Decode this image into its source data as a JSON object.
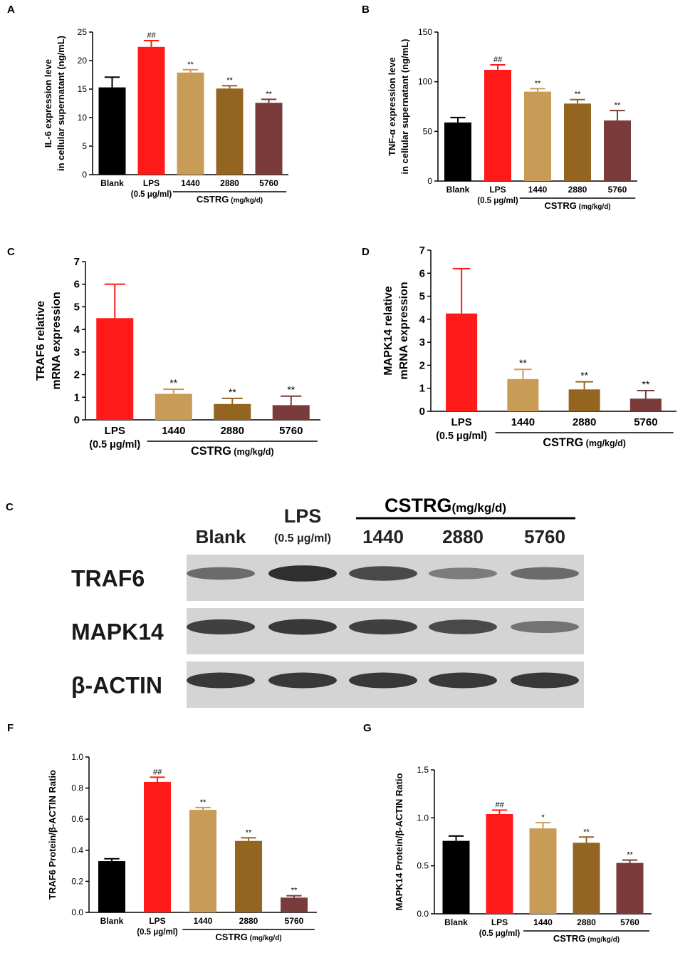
{
  "colors": {
    "Blank": "#000000",
    "LPS": "#ff1a1a",
    "1440": "#c89b57",
    "2880": "#946520",
    "5760": "#7a3b3b"
  },
  "chart_data": [
    {
      "type": "bar",
      "panel": "A",
      "ylabel": [
        "IL-6 expression leve",
        "in cellular supernatant (ng/mL)"
      ],
      "ylim": [
        0,
        25
      ],
      "yticks": [
        "0",
        "5",
        "10",
        "15",
        "20",
        "25"
      ],
      "categories": [
        "Blank",
        "LPS",
        "1440",
        "2880",
        "5760"
      ],
      "category_sublabels": [
        "",
        "(0.5 μg/ml)",
        "",
        "",
        ""
      ],
      "group_label": "CSTRG",
      "group_unit": "(mg/kg/d)",
      "values": [
        15.3,
        22.4,
        17.9,
        15.1,
        12.6
      ],
      "errors": [
        1.8,
        1.1,
        0.5,
        0.5,
        0.6
      ],
      "annotations": [
        "",
        "##",
        "**",
        "**",
        "**"
      ]
    },
    {
      "type": "bar",
      "panel": "B",
      "ylabel": [
        "TNF-α expression leve",
        "in cellular supernatant (ng/mL)"
      ],
      "ylim": [
        0,
        150
      ],
      "yticks": [
        "0",
        "50",
        "100",
        "150"
      ],
      "categories": [
        "Blank",
        "LPS",
        "1440",
        "2880",
        "5760"
      ],
      "category_sublabels": [
        "",
        "(0.5 μg/ml)",
        "",
        "",
        ""
      ],
      "group_label": "CSTRG",
      "group_unit": "(mg/kg/d)",
      "values": [
        59,
        112,
        90,
        78,
        61
      ],
      "errors": [
        5,
        5,
        3,
        4,
        10
      ],
      "annotations": [
        "",
        "##",
        "**",
        "**",
        "**"
      ]
    },
    {
      "type": "bar",
      "panel": "C",
      "ylabel": [
        "TRAF6 relative",
        "mRNA expression"
      ],
      "ylim": [
        0,
        7
      ],
      "yticks": [
        "0",
        "1",
        "2",
        "3",
        "4",
        "5",
        "6",
        "7"
      ],
      "categories": [
        "LPS",
        "1440",
        "2880",
        "5760"
      ],
      "category_sublabels": [
        "(0.5 μg/ml)",
        "",
        "",
        ""
      ],
      "group_label": "CSTRG",
      "group_unit": "(mg/kg/d)",
      "values": [
        4.5,
        1.15,
        0.7,
        0.65
      ],
      "errors": [
        1.5,
        0.2,
        0.25,
        0.4
      ],
      "annotations": [
        "",
        "**",
        "**",
        "**"
      ]
    },
    {
      "type": "bar",
      "panel": "D",
      "ylabel": [
        "MAPK14 relative",
        "mRNA expression"
      ],
      "ylim": [
        0,
        7
      ],
      "yticks": [
        "0",
        "1",
        "2",
        "3",
        "4",
        "5",
        "6",
        "7"
      ],
      "categories": [
        "LPS",
        "1440",
        "2880",
        "5760"
      ],
      "category_sublabels": [
        "(0.5 μg/ml)",
        "",
        "",
        ""
      ],
      "group_label": "CSTRG",
      "group_unit": "(mg/kg/d)",
      "values": [
        4.25,
        1.4,
        0.95,
        0.55
      ],
      "errors": [
        1.95,
        0.42,
        0.33,
        0.35
      ],
      "annotations": [
        "",
        "**",
        "**",
        "**"
      ]
    },
    {
      "type": "bar",
      "panel": "F",
      "ylabel": [
        "TRAF6 Protein/β-ACTIN Ratio"
      ],
      "ylim": [
        0,
        1.0
      ],
      "yticks": [
        "0.0",
        "0.2",
        "0.4",
        "0.6",
        "0.8",
        "1.0"
      ],
      "categories": [
        "Blank",
        "LPS",
        "1440",
        "2880",
        "5760"
      ],
      "category_sublabels": [
        "",
        "(0.5 μg/ml)",
        "",
        "",
        ""
      ],
      "group_label": "CSTRG",
      "group_unit": "(mg/kg/d)",
      "values": [
        0.33,
        0.84,
        0.66,
        0.46,
        0.095
      ],
      "errors": [
        0.015,
        0.03,
        0.015,
        0.02,
        0.012
      ],
      "annotations": [
        "",
        "##",
        "**",
        "**",
        "**"
      ]
    },
    {
      "type": "bar",
      "panel": "G",
      "ylabel": [
        "MAPK14 Protein/β-ACTIN Ratio"
      ],
      "ylim": [
        0,
        1.5
      ],
      "yticks": [
        "0.0",
        "0.5",
        "1.0",
        "1.5"
      ],
      "categories": [
        "Blank",
        "LPS",
        "1440",
        "2880",
        "5760"
      ],
      "category_sublabels": [
        "",
        "(0.5 μg/ml)",
        "",
        "",
        ""
      ],
      "group_label": "CSTRG",
      "group_unit": "(mg/kg/d)",
      "values": [
        0.76,
        1.04,
        0.89,
        0.74,
        0.53
      ],
      "errors": [
        0.05,
        0.04,
        0.06,
        0.06,
        0.03
      ],
      "annotations": [
        "",
        "##",
        "*",
        "**",
        "**"
      ]
    }
  ],
  "blot": {
    "panel": "C",
    "group_label": "CSTRG",
    "group_unit": "(mg/kg/d)",
    "lanes": [
      "Blank",
      "LPS",
      "1440",
      "2880",
      "5760"
    ],
    "lane_sublabels": [
      "",
      "(0.5 μg/ml)",
      "",
      "",
      ""
    ],
    "rows": [
      {
        "label": "TRAF6",
        "intensity": [
          0.55,
          0.9,
          0.75,
          0.45,
          0.55
        ]
      },
      {
        "label": "MAPK14",
        "intensity": [
          0.8,
          0.85,
          0.8,
          0.75,
          0.5
        ]
      },
      {
        "label": "β-ACTIN",
        "intensity": [
          0.85,
          0.85,
          0.85,
          0.85,
          0.85
        ]
      }
    ]
  }
}
